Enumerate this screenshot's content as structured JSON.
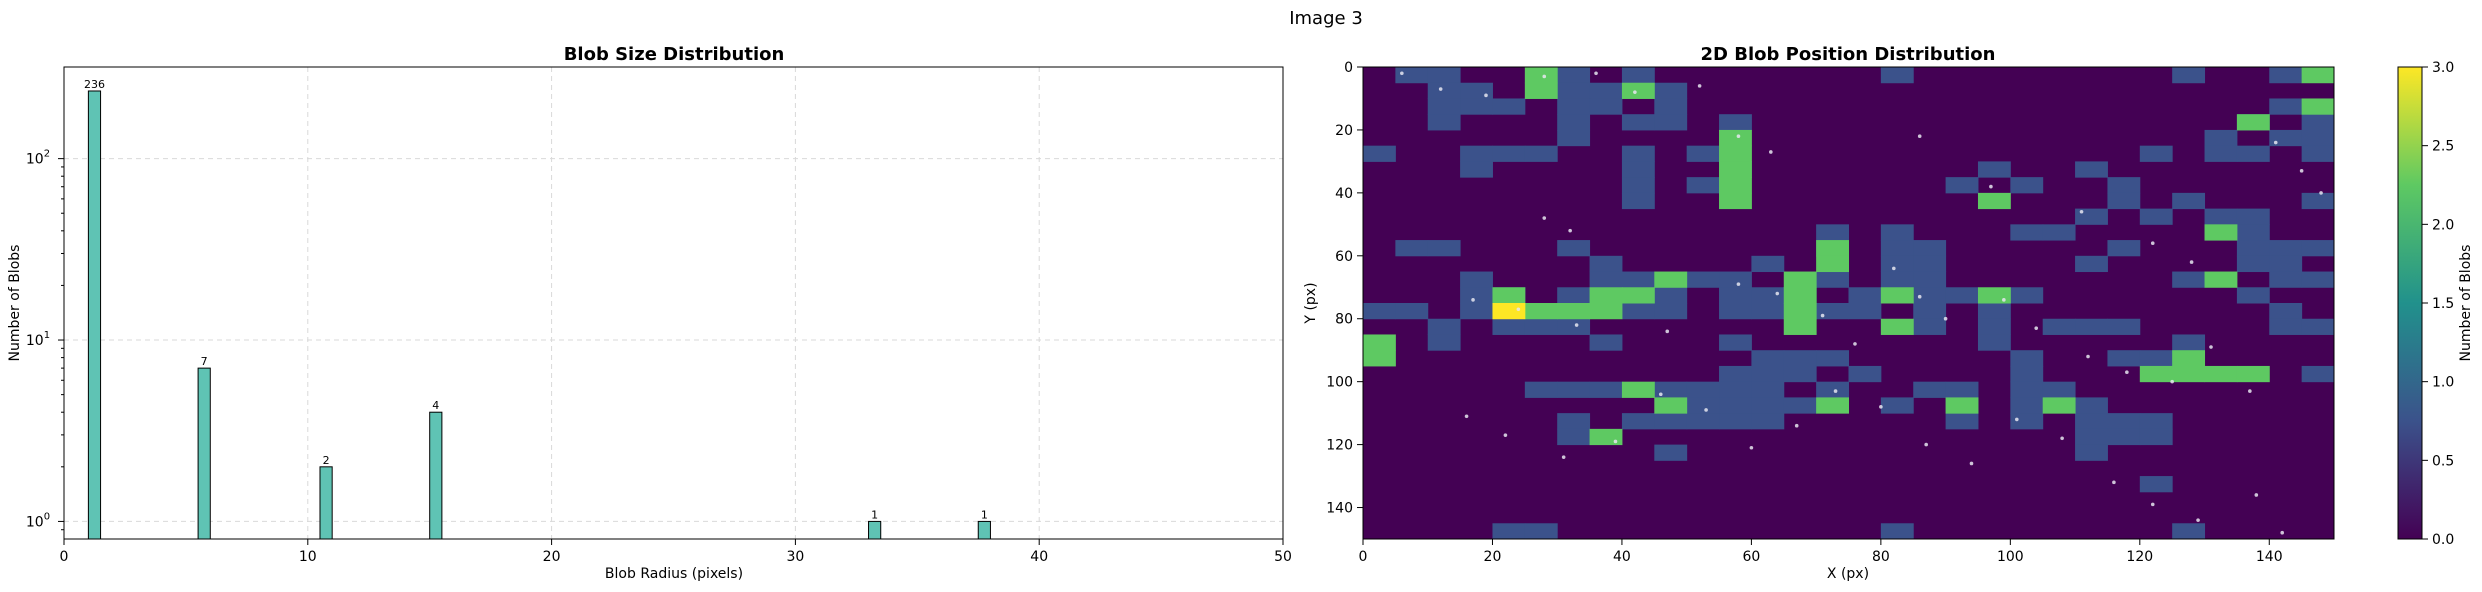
{
  "figure": {
    "suptitle": "Image 3"
  },
  "chart_data": [
    {
      "type": "bar",
      "title": "Blob Size Distribution",
      "xlabel": "Blob Radius (pixels)",
      "ylabel": "Number of Blobs",
      "xlim": [
        0,
        50
      ],
      "ylim": [
        0.8,
        320
      ],
      "yscale": "log",
      "grid": true,
      "xticks": [
        0,
        10,
        20,
        30,
        40,
        50
      ],
      "yticks": [
        {
          "label": "10",
          "sup": "0",
          "value": 1
        },
        {
          "label": "10",
          "sup": "1",
          "value": 10
        },
        {
          "label": "10",
          "sup": "2",
          "value": 100
        }
      ],
      "bar_color": "#5fc3b4",
      "bars": [
        {
          "x": 1.25,
          "value": 236,
          "label": "236"
        },
        {
          "x": 5.75,
          "value": 7,
          "label": "7"
        },
        {
          "x": 10.75,
          "value": 2,
          "label": "2"
        },
        {
          "x": 15.25,
          "value": 4,
          "label": "4"
        },
        {
          "x": 33.25,
          "value": 1,
          "label": "1"
        },
        {
          "x": 37.75,
          "value": 1,
          "label": "1"
        }
      ]
    },
    {
      "type": "heatmap",
      "title": "2D Blob Position Distribution",
      "xlabel": "X (px)",
      "ylabel": "Y (px)",
      "xlim": [
        0,
        150
      ],
      "ylim": [
        150,
        0
      ],
      "xticks": [
        0,
        20,
        40,
        60,
        80,
        100,
        120,
        140
      ],
      "yticks": [
        0,
        20,
        40,
        60,
        80,
        100,
        120,
        140
      ],
      "bin_size": 5,
      "colormap": "viridis",
      "colorbar": {
        "label": "Number of Blobs",
        "range": [
          0,
          3
        ],
        "ticks": [
          "0.0",
          "0.5",
          "1.0",
          "1.5",
          "2.0",
          "2.5",
          "3.0"
        ]
      },
      "color_scale": [
        "#440154",
        "#3b528b",
        "#21918c",
        "#5ec962",
        "#fde725"
      ],
      "cells_value1": [
        [
          5,
          0
        ],
        [
          10,
          0
        ],
        [
          30,
          0
        ],
        [
          40,
          0
        ],
        [
          80,
          0
        ],
        [
          125,
          0
        ],
        [
          140,
          0
        ],
        [
          10,
          5
        ],
        [
          15,
          5
        ],
        [
          30,
          5
        ],
        [
          35,
          5
        ],
        [
          45,
          5
        ],
        [
          10,
          10
        ],
        [
          15,
          10
        ],
        [
          20,
          10
        ],
        [
          30,
          10
        ],
        [
          35,
          10
        ],
        [
          45,
          10
        ],
        [
          140,
          10
        ],
        [
          10,
          15
        ],
        [
          30,
          15
        ],
        [
          40,
          15
        ],
        [
          45,
          15
        ],
        [
          55,
          15
        ],
        [
          135,
          15
        ],
        [
          145,
          15
        ],
        [
          30,
          20
        ],
        [
          130,
          20
        ],
        [
          140,
          20
        ],
        [
          145,
          20
        ],
        [
          0,
          25
        ],
        [
          15,
          25
        ],
        [
          20,
          25
        ],
        [
          25,
          25
        ],
        [
          40,
          25
        ],
        [
          50,
          25
        ],
        [
          120,
          25
        ],
        [
          130,
          25
        ],
        [
          135,
          25
        ],
        [
          145,
          25
        ],
        [
          15,
          30
        ],
        [
          40,
          30
        ],
        [
          55,
          30
        ],
        [
          95,
          30
        ],
        [
          110,
          30
        ],
        [
          40,
          35
        ],
        [
          50,
          35
        ],
        [
          90,
          35
        ],
        [
          100,
          35
        ],
        [
          115,
          35
        ],
        [
          40,
          40
        ],
        [
          115,
          40
        ],
        [
          125,
          40
        ],
        [
          145,
          40
        ],
        [
          110,
          45
        ],
        [
          120,
          45
        ],
        [
          130,
          45
        ],
        [
          135,
          45
        ],
        [
          70,
          50
        ],
        [
          80,
          50
        ],
        [
          100,
          50
        ],
        [
          105,
          50
        ],
        [
          130,
          50
        ],
        [
          135,
          50
        ],
        [
          5,
          55
        ],
        [
          10,
          55
        ],
        [
          30,
          55
        ],
        [
          70,
          55
        ],
        [
          80,
          55
        ],
        [
          85,
          55
        ],
        [
          115,
          55
        ],
        [
          135,
          55
        ],
        [
          140,
          55
        ],
        [
          145,
          55
        ],
        [
          35,
          60
        ],
        [
          60,
          60
        ],
        [
          80,
          60
        ],
        [
          85,
          60
        ],
        [
          110,
          60
        ],
        [
          135,
          60
        ],
        [
          140,
          60
        ],
        [
          15,
          65
        ],
        [
          35,
          65
        ],
        [
          40,
          65
        ],
        [
          50,
          65
        ],
        [
          55,
          65
        ],
        [
          70,
          65
        ],
        [
          80,
          65
        ],
        [
          85,
          65
        ],
        [
          125,
          65
        ],
        [
          140,
          65
        ],
        [
          145,
          65
        ],
        [
          15,
          70
        ],
        [
          20,
          70
        ],
        [
          30,
          70
        ],
        [
          35,
          70
        ],
        [
          45,
          70
        ],
        [
          55,
          70
        ],
        [
          60,
          70
        ],
        [
          65,
          70
        ],
        [
          75,
          70
        ],
        [
          85,
          70
        ],
        [
          90,
          70
        ],
        [
          100,
          70
        ],
        [
          135,
          70
        ],
        [
          0,
          75
        ],
        [
          5,
          75
        ],
        [
          15,
          75
        ],
        [
          30,
          75
        ],
        [
          40,
          75
        ],
        [
          45,
          75
        ],
        [
          55,
          75
        ],
        [
          60,
          75
        ],
        [
          70,
          75
        ],
        [
          75,
          75
        ],
        [
          85,
          75
        ],
        [
          95,
          75
        ],
        [
          140,
          75
        ],
        [
          10,
          80
        ],
        [
          20,
          80
        ],
        [
          25,
          80
        ],
        [
          30,
          80
        ],
        [
          85,
          80
        ],
        [
          95,
          80
        ],
        [
          105,
          80
        ],
        [
          110,
          80
        ],
        [
          115,
          80
        ],
        [
          140,
          80
        ],
        [
          145,
          80
        ],
        [
          10,
          85
        ],
        [
          35,
          85
        ],
        [
          55,
          85
        ],
        [
          95,
          85
        ],
        [
          125,
          85
        ],
        [
          60,
          90
        ],
        [
          65,
          90
        ],
        [
          70,
          90
        ],
        [
          100,
          90
        ],
        [
          115,
          90
        ],
        [
          120,
          90
        ],
        [
          55,
          95
        ],
        [
          60,
          95
        ],
        [
          65,
          95
        ],
        [
          75,
          95
        ],
        [
          100,
          95
        ],
        [
          145,
          95
        ],
        [
          25,
          100
        ],
        [
          30,
          100
        ],
        [
          35,
          100
        ],
        [
          45,
          100
        ],
        [
          50,
          100
        ],
        [
          55,
          100
        ],
        [
          60,
          100
        ],
        [
          70,
          100
        ],
        [
          85,
          100
        ],
        [
          90,
          100
        ],
        [
          100,
          100
        ],
        [
          105,
          100
        ],
        [
          50,
          105
        ],
        [
          55,
          105
        ],
        [
          60,
          105
        ],
        [
          65,
          105
        ],
        [
          80,
          105
        ],
        [
          90,
          105
        ],
        [
          100,
          105
        ],
        [
          110,
          105
        ],
        [
          30,
          110
        ],
        [
          40,
          110
        ],
        [
          45,
          110
        ],
        [
          50,
          110
        ],
        [
          55,
          110
        ],
        [
          60,
          110
        ],
        [
          90,
          110
        ],
        [
          100,
          110
        ],
        [
          110,
          110
        ],
        [
          115,
          110
        ],
        [
          120,
          110
        ],
        [
          30,
          115
        ],
        [
          110,
          115
        ],
        [
          115,
          115
        ],
        [
          120,
          115
        ],
        [
          45,
          120
        ],
        [
          110,
          120
        ],
        [
          120,
          130
        ],
        [
          20,
          145
        ],
        [
          25,
          145
        ],
        [
          80,
          145
        ],
        [
          125,
          145
        ]
      ],
      "cells_value2": [
        [
          25,
          0
        ],
        [
          145,
          0
        ],
        [
          25,
          5
        ],
        [
          40,
          5
        ],
        [
          145,
          10
        ],
        [
          135,
          15
        ],
        [
          55,
          20
        ],
        [
          55,
          25
        ],
        [
          55,
          30
        ],
        [
          55,
          35
        ],
        [
          55,
          40
        ],
        [
          95,
          40
        ],
        [
          130,
          50
        ],
        [
          70,
          55
        ],
        [
          70,
          60
        ],
        [
          45,
          65
        ],
        [
          65,
          65
        ],
        [
          130,
          65
        ],
        [
          20,
          70
        ],
        [
          35,
          70
        ],
        [
          40,
          70
        ],
        [
          65,
          70
        ],
        [
          80,
          70
        ],
        [
          95,
          70
        ],
        [
          25,
          75
        ],
        [
          30,
          75
        ],
        [
          65,
          75
        ],
        [
          35,
          75
        ],
        [
          80,
          80
        ],
        [
          65,
          80
        ],
        [
          0,
          85
        ],
        [
          0,
          90
        ],
        [
          125,
          90
        ],
        [
          120,
          95
        ],
        [
          125,
          95
        ],
        [
          130,
          95
        ],
        [
          135,
          95
        ],
        [
          40,
          100
        ],
        [
          45,
          105
        ],
        [
          70,
          105
        ],
        [
          90,
          105
        ],
        [
          105,
          105
        ],
        [
          35,
          115
        ]
      ],
      "cells_value3": [
        [
          20,
          75
        ]
      ],
      "blob_points": [
        [
          6,
          2
        ],
        [
          12,
          7
        ],
        [
          19,
          9
        ],
        [
          28,
          3
        ],
        [
          36,
          2
        ],
        [
          42,
          8
        ],
        [
          52,
          6
        ],
        [
          58,
          22
        ],
        [
          63,
          27
        ],
        [
          28,
          48
        ],
        [
          32,
          52
        ],
        [
          86,
          22
        ],
        [
          97,
          38
        ],
        [
          111,
          46
        ],
        [
          122,
          56
        ],
        [
          128,
          62
        ],
        [
          141,
          24
        ],
        [
          145,
          33
        ],
        [
          148,
          40
        ],
        [
          17,
          74
        ],
        [
          24,
          77
        ],
        [
          33,
          82
        ],
        [
          47,
          84
        ],
        [
          58,
          69
        ],
        [
          64,
          72
        ],
        [
          71,
          79
        ],
        [
          76,
          88
        ],
        [
          82,
          64
        ],
        [
          86,
          73
        ],
        [
          90,
          80
        ],
        [
          99,
          74
        ],
        [
          104,
          83
        ],
        [
          112,
          92
        ],
        [
          118,
          97
        ],
        [
          125,
          100
        ],
        [
          131,
          89
        ],
        [
          137,
          103
        ],
        [
          16,
          111
        ],
        [
          22,
          117
        ],
        [
          31,
          124
        ],
        [
          39,
          119
        ],
        [
          46,
          104
        ],
        [
          53,
          109
        ],
        [
          60,
          121
        ],
        [
          67,
          114
        ],
        [
          73,
          103
        ],
        [
          80,
          108
        ],
        [
          87,
          120
        ],
        [
          94,
          126
        ],
        [
          101,
          112
        ],
        [
          108,
          118
        ],
        [
          116,
          132
        ],
        [
          122,
          139
        ],
        [
          129,
          144
        ],
        [
          138,
          136
        ],
        [
          142,
          148
        ]
      ]
    }
  ]
}
